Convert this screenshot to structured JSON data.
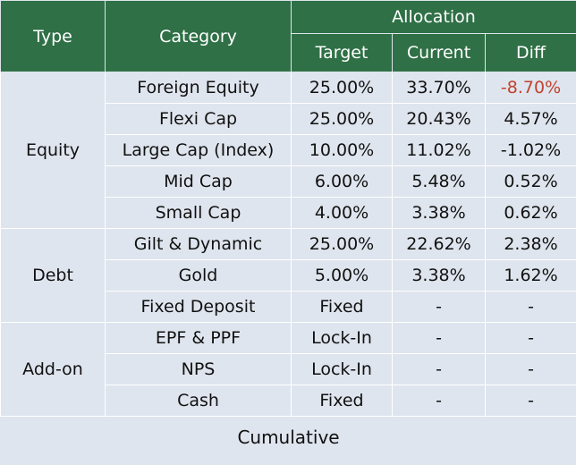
{
  "header": {
    "type": "Type",
    "category": "Category",
    "allocation": "Allocation",
    "target": "Target",
    "current": "Current",
    "diff": "Diff"
  },
  "groups": [
    {
      "type": "Equity",
      "rows": [
        {
          "category": "Foreign Equity",
          "target": "25.00%",
          "current": "33.70%",
          "diff": "-8.70%",
          "diff_color": "#c0432f"
        },
        {
          "category": "Flexi Cap",
          "target": "25.00%",
          "current": "20.43%",
          "diff": "4.57%"
        },
        {
          "category": "Large Cap (Index)",
          "target": "10.00%",
          "current": "11.02%",
          "diff": "-1.02%"
        },
        {
          "category": "Mid Cap",
          "target": "6.00%",
          "current": "5.48%",
          "diff": "0.52%"
        },
        {
          "category": "Small Cap",
          "target": "4.00%",
          "current": "3.38%",
          "diff": "0.62%"
        }
      ]
    },
    {
      "type": "Debt",
      "rows": [
        {
          "category": "Gilt & Dynamic",
          "target": "25.00%",
          "current": "22.62%",
          "diff": "2.38%"
        },
        {
          "category": "Gold",
          "target": "5.00%",
          "current": "3.38%",
          "diff": "1.62%"
        },
        {
          "category": "Fixed Deposit",
          "target": "Fixed",
          "current": "-",
          "diff": "-"
        }
      ]
    },
    {
      "type": "Add-on",
      "rows": [
        {
          "category": "EPF & PPF",
          "target": "Lock-In",
          "current": "-",
          "diff": "-"
        },
        {
          "category": "NPS",
          "target": "Lock-In",
          "current": "-",
          "diff": "-"
        },
        {
          "category": "Cash",
          "target": "Fixed",
          "current": "-",
          "diff": "-"
        }
      ]
    }
  ],
  "footer": {
    "label": "Cumulative"
  },
  "colors": {
    "header_bg": "#2f7046",
    "cell_bg": "#dfe5ee",
    "negative_highlight": "#c0432f"
  }
}
